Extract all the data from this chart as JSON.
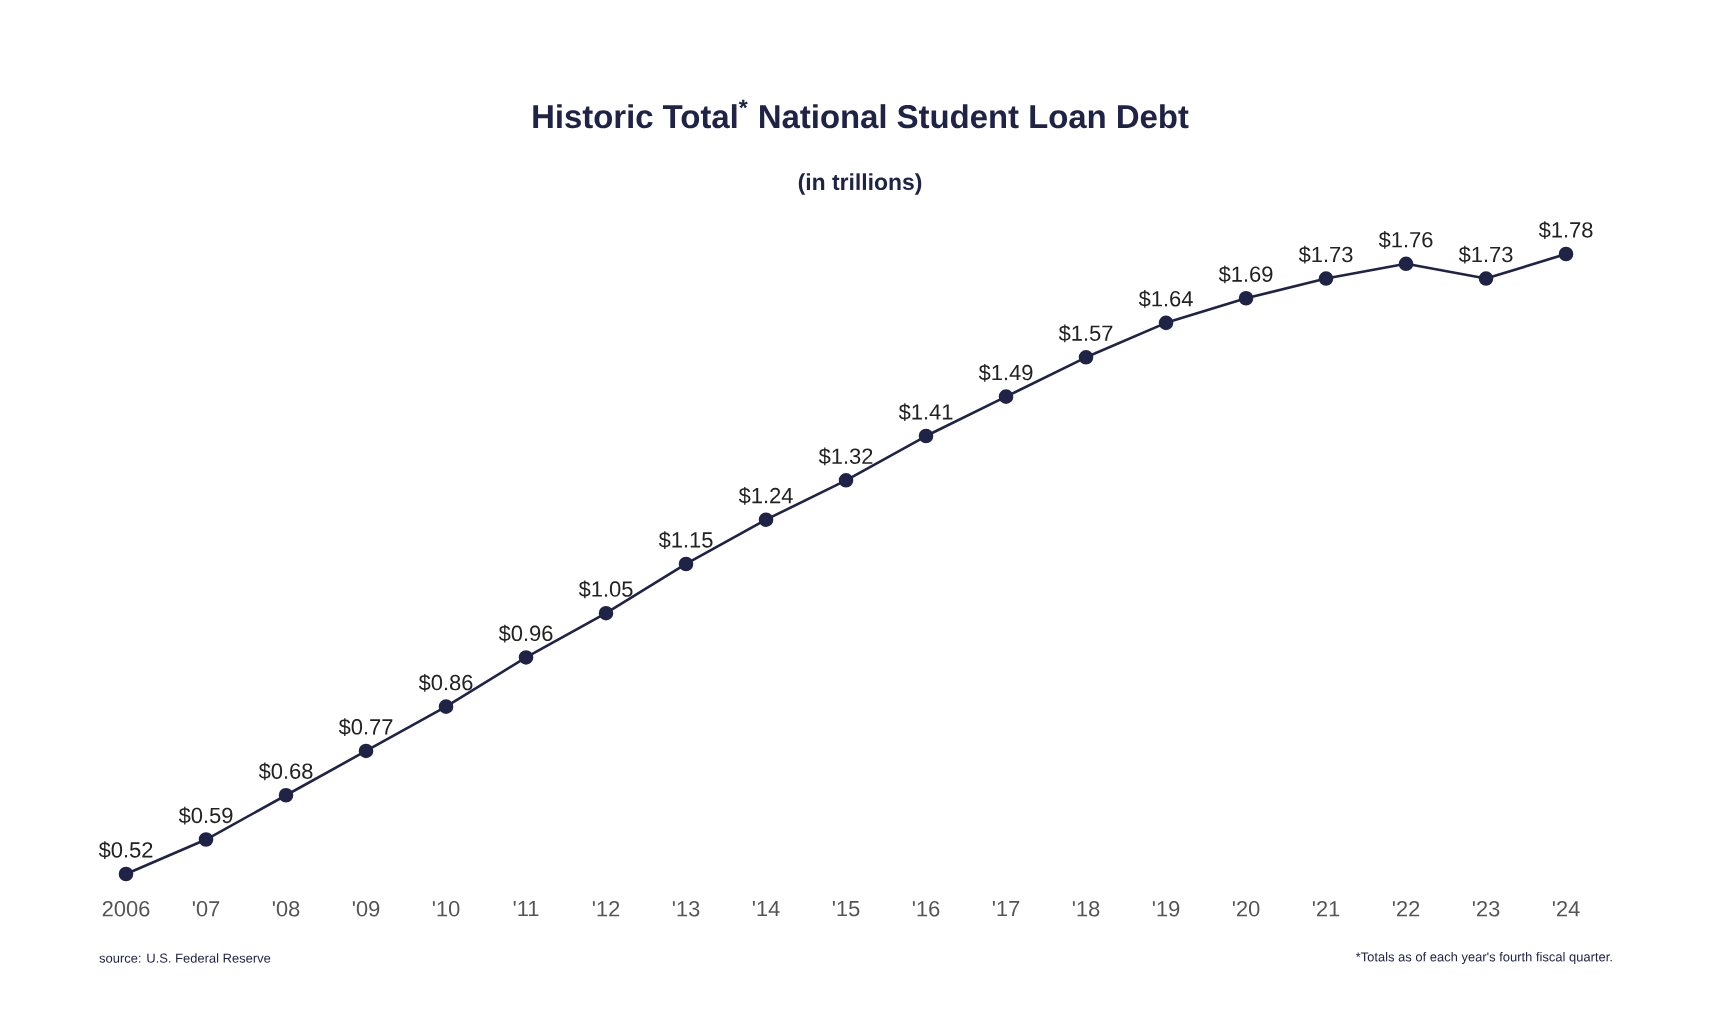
{
  "chart_data": {
    "type": "line",
    "title": "Historic Total$^{*}$ National Student Loan Debt",
    "subtitle": "(in trillions)",
    "categories": [
      "2006",
      "'07",
      "'08",
      "'09",
      "'10",
      "'11",
      "'12",
      "'13",
      "'14",
      "'15",
      "'16",
      "'17",
      "'18",
      "'19",
      "'20",
      "'21",
      "'22",
      "'23",
      "'24"
    ],
    "series": [
      {
        "color": "#1f2447",
        "values": [
          0.52,
          0.59,
          0.68,
          0.77,
          0.86,
          0.96,
          1.05,
          1.15,
          1.24,
          1.32,
          1.41,
          1.49,
          1.57,
          1.64,
          1.69,
          1.73,
          1.76,
          1.73,
          1.78
        ],
        "value_labels": [
          "$0.52",
          "$0.59",
          "$0.68",
          "$0.77",
          "$0.86",
          "$0.96",
          "$1.05",
          "$1.15",
          "$1.24",
          "$1.32",
          "$1.41",
          "$1.49",
          "$1.57",
          "$1.64",
          "$1.69",
          "$1.73",
          "$1.76",
          "$1.73",
          "$1.78"
        ]
      }
    ],
    "marker": "circle",
    "line_style": "solid",
    "tick_labels": "x",
    "annotations": [
      "source: U.S. Federal Reserve",
      "*Totals as of each year's fourth fiscal quarter."
    ]
  }
}
